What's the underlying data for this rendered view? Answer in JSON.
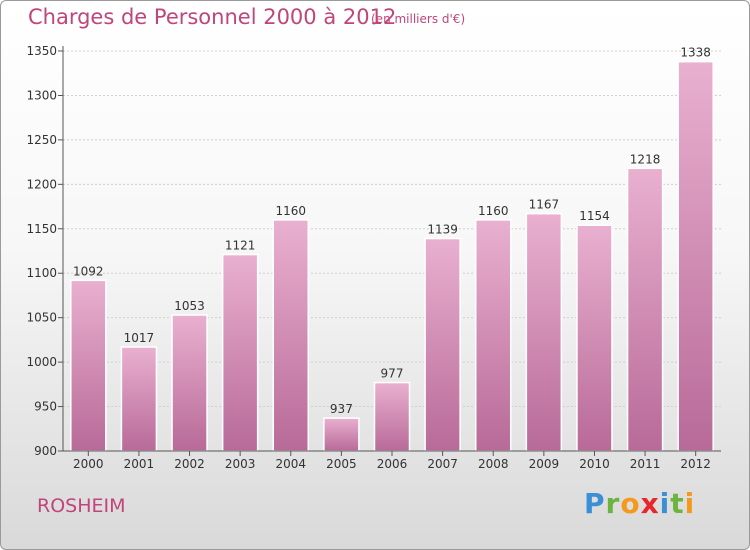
{
  "header": {
    "title": "Charges de Personnel 2000 à 2012",
    "subtitle": "(en milliers d'€)"
  },
  "footer": {
    "place": "ROSHEIM",
    "logo_letters": [
      {
        "ch": "P",
        "color": "#3a8fd6"
      },
      {
        "ch": "r",
        "color": "#6cb33f"
      },
      {
        "ch": "o",
        "color": "#f39a1e"
      },
      {
        "ch": "x",
        "color": "#e8262a"
      },
      {
        "ch": "i",
        "color": "#3a8fd6"
      },
      {
        "ch": "t",
        "color": "#6cb33f"
      },
      {
        "ch": "i",
        "color": "#f39a1e"
      }
    ]
  },
  "chart_data": {
    "type": "bar",
    "categories": [
      "2000",
      "2001",
      "2002",
      "2003",
      "2004",
      "2005",
      "2006",
      "2007",
      "2008",
      "2009",
      "2010",
      "2011",
      "2012"
    ],
    "values": [
      1092,
      1017,
      1053,
      1121,
      1160,
      937,
      977,
      1139,
      1160,
      1167,
      1154,
      1218,
      1338
    ],
    "ylim": [
      900,
      1350
    ],
    "yticks": [
      900,
      950,
      1000,
      1050,
      1100,
      1150,
      1200,
      1250,
      1300,
      1350
    ],
    "grid": true,
    "bar_color": "#c46d9f",
    "bar_color_light": "#e6a9cb"
  }
}
